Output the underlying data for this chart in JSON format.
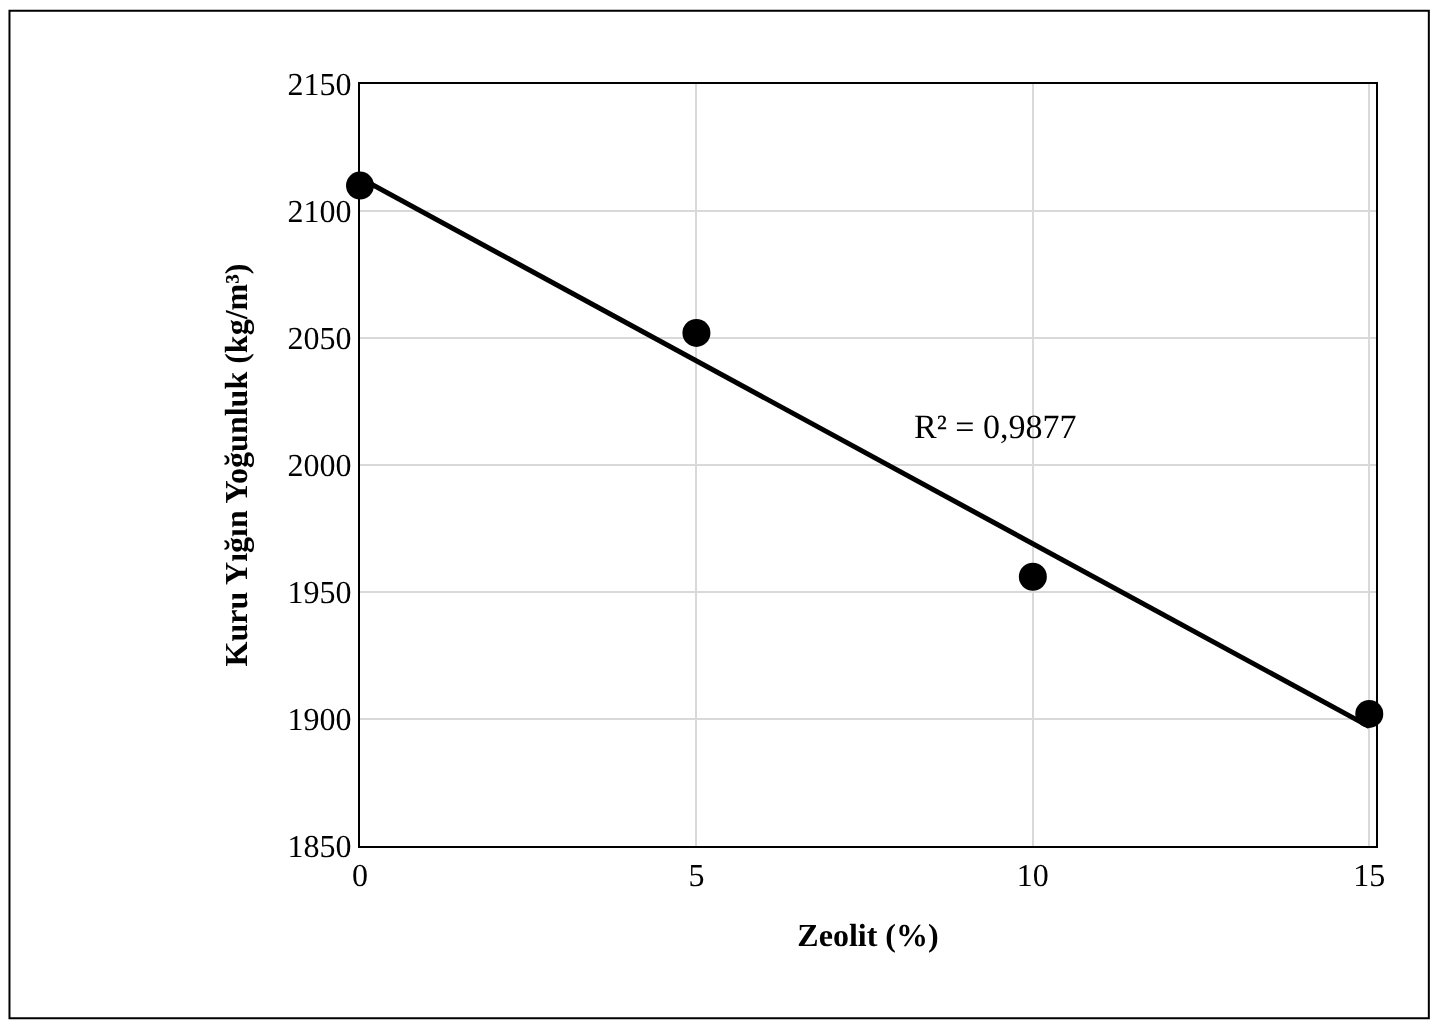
{
  "chart_data": {
    "type": "scatter",
    "xlabel": "Zeolit (%)",
    "ylabel": "Kuru Yığın Yoğunluk (kg/m³)",
    "x": [
      0,
      5,
      10,
      15
    ],
    "series": [
      {
        "color": "#000000",
        "values": [
          2110,
          2052,
          1956,
          1902
        ],
        "marker": "circle"
      },
      {
        "type": "line",
        "color": "#000000",
        "x": [
          0,
          15
        ],
        "values": [
          2113,
          1897
        ],
        "marker": "none"
      }
    ],
    "xlim": [
      0,
      15.1
    ],
    "xticks": [
      0,
      5,
      10,
      15
    ],
    "ylim": [
      1850,
      2150
    ],
    "yticks": [
      1850,
      1900,
      1950,
      2000,
      2050,
      2100,
      2150
    ],
    "grid": true,
    "legend": false,
    "annotations": [
      "R² = 0,9877"
    ]
  }
}
